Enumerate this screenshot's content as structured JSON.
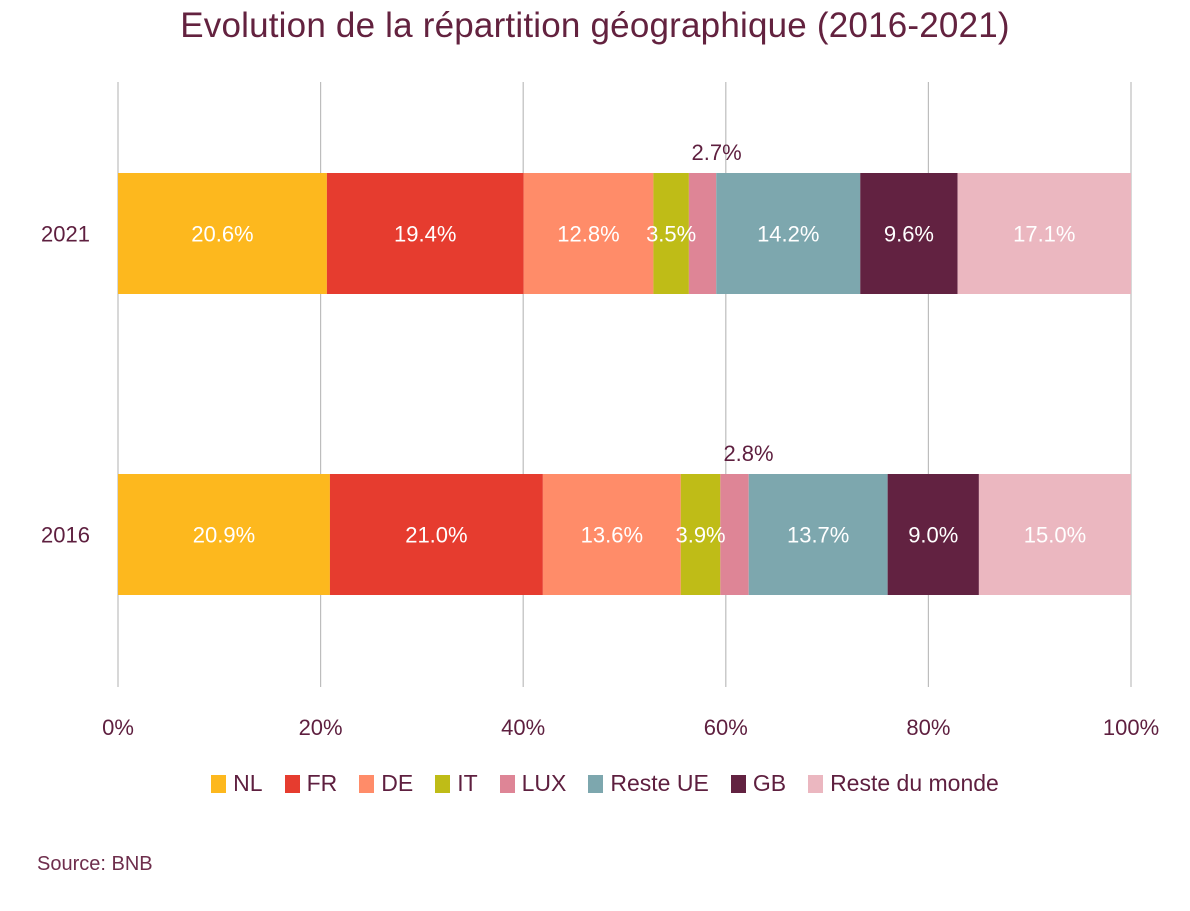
{
  "chart_data": {
    "type": "bar",
    "orientation": "horizontal",
    "stacked": true,
    "normalized": true,
    "title": "Evolution de la répartition géographique (2016-2021)",
    "xlabel": "",
    "ylabel": "",
    "xlim": [
      0,
      100
    ],
    "x_ticks": [
      "0%",
      "20%",
      "40%",
      "60%",
      "80%",
      "100%"
    ],
    "grid": true,
    "legend_position": "bottom-center",
    "categories": [
      "2021",
      "2016"
    ],
    "series": [
      {
        "name": "NL",
        "color": "#FDB81E",
        "values": [
          20.6,
          20.9
        ],
        "labels": [
          "20.6%",
          "20.9%"
        ],
        "label_position": "inside"
      },
      {
        "name": "FR",
        "color": "#E63C2F",
        "values": [
          19.4,
          21.0
        ],
        "labels": [
          "19.4%",
          "21.0%"
        ],
        "label_position": "inside"
      },
      {
        "name": "DE",
        "color": "#FF8C69",
        "values": [
          12.8,
          13.6
        ],
        "labels": [
          "12.8%",
          "13.6%"
        ],
        "label_position": "inside"
      },
      {
        "name": "IT",
        "color": "#BFBC17",
        "values": [
          3.5,
          3.9
        ],
        "labels": [
          "3.5%",
          "3.9%"
        ],
        "label_position": "inside"
      },
      {
        "name": "LUX",
        "color": "#DE8596",
        "values": [
          2.7,
          2.8
        ],
        "labels": [
          "2.7%",
          "2.8%"
        ],
        "label_position": "above"
      },
      {
        "name": "Reste UE",
        "color": "#7DA7AE",
        "values": [
          14.2,
          13.7
        ],
        "labels": [
          "14.2%",
          "13.7%"
        ],
        "label_position": "inside"
      },
      {
        "name": "GB",
        "color": "#622241",
        "values": [
          9.6,
          9.0
        ],
        "labels": [
          "9.6%",
          "9.0%"
        ],
        "label_position": "inside"
      },
      {
        "name": "Reste du monde",
        "color": "#EBB7C0",
        "values": [
          17.1,
          15.0
        ],
        "labels": [
          "17.1%",
          "15.0%"
        ],
        "label_position": "inside"
      }
    ]
  },
  "footer": {
    "source": "Source: BNB"
  },
  "theme": {
    "text_color": "#5E1F3F",
    "grid_color": "#BDBDBD",
    "inside_label_color": "#FFFFFF"
  }
}
